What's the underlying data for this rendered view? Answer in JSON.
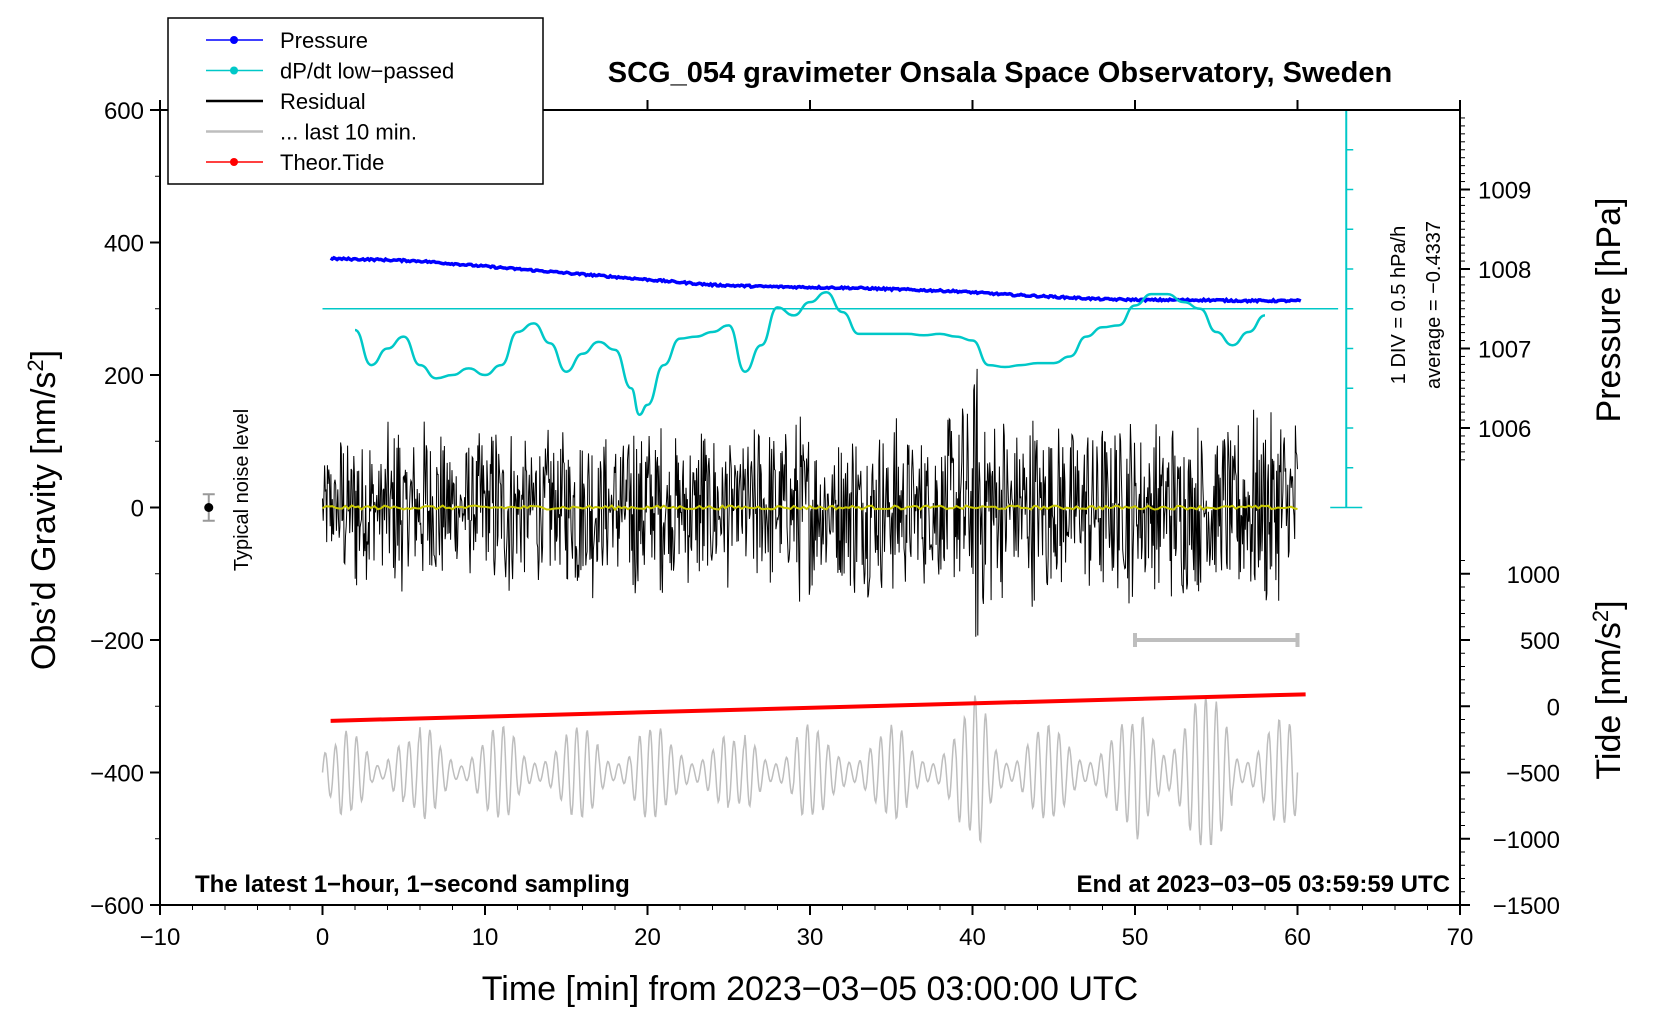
{
  "chart_data": {
    "type": "line",
    "title": "SCG_054 gravimeter Onsala Space Observatory, Sweden",
    "xlabel": "Time [min] from 2023−03−05 03:00:00 UTC",
    "ylabel_left": "Obs’d Gravity [nm/s",
    "ylabel_left_sup": "2",
    "ylabel_left_end": "]",
    "ylabel_right_pressure": "Pressure [hPa]",
    "ylabel_right_tide": "Tide [nm/s",
    "ylabel_right_tide_sup": "2",
    "ylabel_right_tide_end": "]",
    "xlim": [
      -10,
      70
    ],
    "ylim_left": [
      -600,
      600
    ],
    "x_ticks": [
      {
        "v": -10,
        "label": "−10"
      },
      {
        "v": 0,
        "label": "0"
      },
      {
        "v": 10,
        "label": "10"
      },
      {
        "v": 20,
        "label": "20"
      },
      {
        "v": 30,
        "label": "30"
      },
      {
        "v": 40,
        "label": "40"
      },
      {
        "v": 50,
        "label": "50"
      },
      {
        "v": 60,
        "label": "60"
      },
      {
        "v": 70,
        "label": "70"
      }
    ],
    "y_ticks_left": [
      {
        "v": 600,
        "label": "600"
      },
      {
        "v": 400,
        "label": "400"
      },
      {
        "v": 200,
        "label": "200"
      },
      {
        "v": 0,
        "label": "0"
      },
      {
        "v": -200,
        "label": "−200"
      },
      {
        "v": -400,
        "label": "−400"
      },
      {
        "v": -600,
        "label": "−600"
      }
    ],
    "pressure_axis": {
      "ticks": [
        {
          "v": 1009,
          "label": "1009"
        },
        {
          "v": 1008,
          "label": "1008"
        },
        {
          "v": 1007,
          "label": "1007"
        },
        {
          "v": 1006,
          "label": "1006"
        }
      ],
      "ref_hpa": 1009,
      "ref_gravity": 480,
      "gravity_per_hpa": 120
    },
    "tide_axis": {
      "ticks": [
        {
          "v": 1000,
          "label": "1000"
        },
        {
          "v": 500,
          "label": "500"
        },
        {
          "v": 0,
          "label": "0"
        },
        {
          "v": -500,
          "label": "−500"
        },
        {
          "v": -1000,
          "label": "−1000"
        },
        {
          "v": -1500,
          "label": "−1500"
        }
      ],
      "ref_tide": 0,
      "ref_gravity": -300,
      "gravity_per_tide": 0.2
    },
    "legend": [
      {
        "label": "Pressure",
        "color": "#0000ff",
        "marker": true
      },
      {
        "label": "dP/dt low−passed",
        "color": "#00c8c8",
        "marker": true
      },
      {
        "label": "Residual",
        "color": "#000000",
        "marker": false
      },
      {
        "label": "... last 10 min.",
        "color": "#bebebe",
        "marker": false
      },
      {
        "label": "Theor.Tide",
        "color": "#ff0000",
        "marker": true
      }
    ],
    "colors": {
      "pressure": "#0000ff",
      "dpdt": "#00c8c8",
      "residual": "#000000",
      "last10": "#bebebe",
      "tide": "#ff0000",
      "mean": "#c8c800"
    },
    "series": [
      {
        "name": "Pressure",
        "unit": "hPa",
        "x": [
          0.5,
          3,
          6,
          9,
          12,
          15,
          18,
          21,
          24,
          27,
          30,
          33,
          36,
          39,
          42,
          45,
          48,
          51,
          54,
          57,
          60.2
        ],
        "y": [
          1008.13,
          1008.12,
          1008.1,
          1008.05,
          1008.0,
          1007.95,
          1007.9,
          1007.85,
          1007.8,
          1007.78,
          1007.77,
          1007.76,
          1007.74,
          1007.72,
          1007.68,
          1007.65,
          1007.62,
          1007.61,
          1007.61,
          1007.6,
          1007.6
        ]
      },
      {
        "name": "dP/dt low−passed",
        "unit": "nm/s2",
        "x": [
          2,
          3,
          4,
          5,
          6,
          7,
          8,
          9,
          10,
          11,
          12,
          13,
          14,
          15,
          16,
          17,
          18,
          19,
          19.5,
          20,
          21,
          22,
          23,
          24,
          25,
          26,
          27,
          28,
          29,
          30,
          31,
          32,
          33,
          34,
          35,
          36,
          37,
          38,
          39,
          40,
          41,
          42,
          43,
          44,
          45,
          46,
          47,
          48,
          49,
          50,
          51,
          52,
          53,
          54,
          55,
          56,
          57,
          58
        ],
        "y": [
          268,
          215,
          240,
          258,
          215,
          195,
          200,
          210,
          200,
          215,
          265,
          278,
          248,
          205,
          232,
          250,
          238,
          180,
          140,
          155,
          215,
          255,
          258,
          265,
          275,
          205,
          245,
          302,
          290,
          310,
          325,
          295,
          262,
          262,
          262,
          262,
          260,
          262,
          258,
          252,
          215,
          212,
          215,
          218,
          218,
          228,
          258,
          272,
          275,
          305,
          322,
          322,
          310,
          300,
          265,
          245,
          265,
          290
        ]
      },
      {
        "name": "Residual",
        "x_range": [
          0,
          60
        ],
        "amplitude_nm_s2": 160
      },
      {
        "name": "... last 10 min.",
        "x_range": [
          0,
          60
        ],
        "offset_nm_s2": -400
      },
      {
        "name": "Theor.Tide",
        "unit": "nm/s2",
        "x": [
          0.5,
          60.5
        ],
        "y": [
          -110,
          90
        ]
      }
    ],
    "noise_level": {
      "x": -7,
      "y": 0,
      "err": 20,
      "label": "Typical noise level"
    },
    "pressure_scale": {
      "label1": "1 DIV = 0.5 hPa/h",
      "label2": "average = −0.4337",
      "x": 63,
      "zero_y": 0,
      "top_y": 600,
      "ref_y": 300
    },
    "last10_marker": {
      "x0": 50,
      "x1": 60,
      "y": -200
    },
    "note_left": "The latest 1−hour, 1−second sampling",
    "note_right": "End at 2023−03−05 03:59:59 UTC"
  }
}
